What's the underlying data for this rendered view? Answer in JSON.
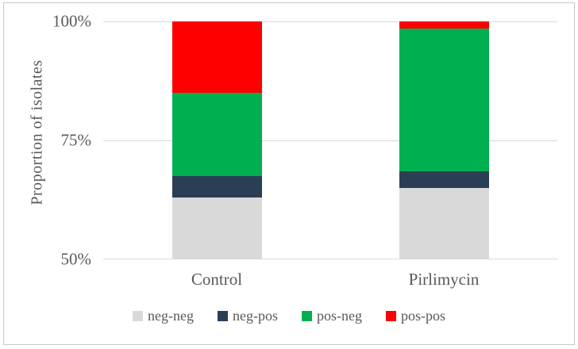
{
  "figure": {
    "background": "#ffffff",
    "border_color": "#c8c8c8",
    "text_color": "#595959",
    "gridline_color": "#d9d9d9"
  },
  "chart_data": {
    "type": "bar",
    "stacked": true,
    "title": "",
    "xlabel": "",
    "ylabel": "Proportion of isolates",
    "categories": [
      "Control",
      "Pirlimycin"
    ],
    "series": [
      {
        "name": "neg-neg",
        "color": "#d9d9d9",
        "values": [
          63.0,
          65.0
        ]
      },
      {
        "name": "neg-pos",
        "color": "#2b3f54",
        "values": [
          4.5,
          3.5
        ]
      },
      {
        "name": "pos-neg",
        "color": "#00b050",
        "values": [
          17.5,
          30.0
        ]
      },
      {
        "name": "pos-pos",
        "color": "#ff0000",
        "values": [
          15.0,
          1.5
        ]
      }
    ],
    "ylim": [
      50,
      100
    ],
    "yticks": [
      {
        "label": "100%",
        "value": 100
      },
      {
        "label": "75%",
        "value": 75
      },
      {
        "label": "50%",
        "value": 50
      }
    ],
    "grid": true,
    "legend_position": "bottom"
  }
}
